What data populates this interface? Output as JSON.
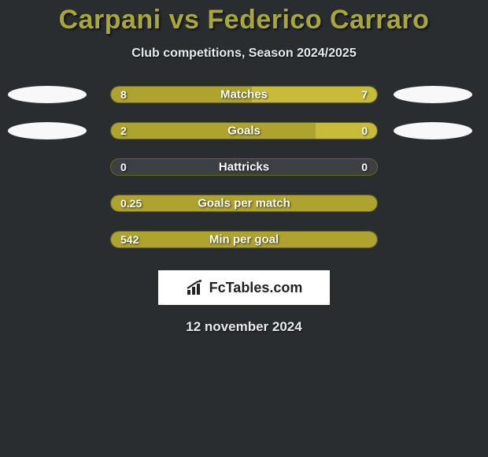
{
  "title": "Carpani vs Federico Carraro",
  "subtitle": "Club competitions, Season 2024/2025",
  "colors": {
    "background": "#2a2d30",
    "title_color": "#a8a838",
    "bar_left": "#aea32e",
    "bar_right": "#c9bb3a",
    "track_bg": "#3d4042",
    "track_border": "#6b6520",
    "text": "#ffffff",
    "ellipse": "#f8f8f8"
  },
  "rows": [
    {
      "label": "Matches",
      "left_value": "8",
      "right_value": "7",
      "left_pct": 53,
      "right_pct": 47,
      "show_left_ellipse": true,
      "show_right_ellipse": true
    },
    {
      "label": "Goals",
      "left_value": "2",
      "right_value": "0",
      "left_pct": 77,
      "right_pct": 23,
      "show_left_ellipse": true,
      "show_right_ellipse": true
    },
    {
      "label": "Hattricks",
      "left_value": "0",
      "right_value": "0",
      "left_pct": 0,
      "right_pct": 0,
      "show_left_ellipse": false,
      "show_right_ellipse": false
    },
    {
      "label": "Goals per match",
      "left_value": "0.25",
      "right_value": "",
      "left_pct": 100,
      "right_pct": 0,
      "show_left_ellipse": false,
      "show_right_ellipse": false
    },
    {
      "label": "Min per goal",
      "left_value": "542",
      "right_value": "",
      "left_pct": 100,
      "right_pct": 0,
      "show_left_ellipse": false,
      "show_right_ellipse": false
    }
  ],
  "logo_text": "FcTables.com",
  "date_text": "12 november 2024"
}
